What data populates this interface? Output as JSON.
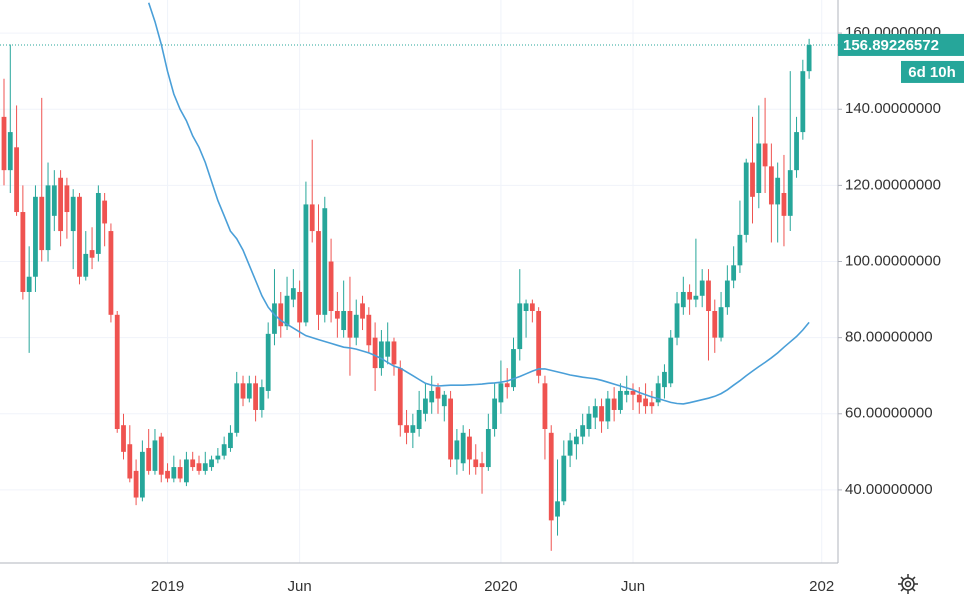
{
  "chart_data": {
    "type": "candlestick",
    "up_color": "#26a69a",
    "down_color": "#ef5350",
    "grid": true,
    "categories": [
      null,
      null,
      null,
      null,
      null,
      null,
      null,
      null,
      null,
      null,
      null,
      null,
      null,
      null,
      null,
      null,
      null,
      null,
      null,
      null,
      null,
      null,
      null,
      null,
      null,
      null,
      "2019",
      null,
      null,
      null,
      null,
      null,
      null,
      null,
      null,
      null,
      null,
      null,
      null,
      null,
      null,
      null,
      null,
      null,
      null,
      null,
      null,
      "Jun",
      null,
      null,
      null,
      null,
      null,
      null,
      null,
      null,
      null,
      null,
      null,
      null,
      null,
      null,
      null,
      null,
      null,
      null,
      null,
      null,
      null,
      null,
      null,
      null,
      null,
      null,
      null,
      null,
      null,
      null,
      null,
      "2020",
      null,
      null,
      null,
      null,
      null,
      null,
      null,
      null,
      null,
      null,
      null,
      null,
      null,
      null,
      null,
      null,
      null,
      null,
      null,
      null,
      "Jun",
      null,
      null,
      null,
      null,
      null,
      null,
      null,
      null,
      null,
      null,
      null,
      null,
      null,
      null,
      null,
      null,
      null,
      null,
      null,
      null,
      null,
      null,
      null,
      null,
      null,
      null,
      null,
      null,
      null,
      "202"
    ],
    "open": [
      138,
      124,
      130,
      113,
      92,
      96,
      117,
      103,
      112,
      122,
      120,
      108,
      117,
      96,
      103,
      102,
      116,
      108,
      86,
      57,
      52,
      45,
      38,
      51,
      45,
      54,
      45,
      43,
      46,
      42,
      48,
      47,
      45,
      46,
      48,
      49,
      51,
      55,
      68,
      64,
      68,
      61,
      66,
      81,
      89,
      83,
      90,
      92,
      84,
      115,
      108,
      86,
      100,
      87,
      82,
      87,
      80,
      89,
      86,
      80,
      72,
      75,
      79,
      72,
      57,
      55,
      56,
      60,
      63,
      67,
      62,
      64,
      48,
      47,
      54,
      48,
      47,
      46,
      56,
      63,
      68,
      67,
      77,
      87,
      89,
      87,
      68,
      55,
      33,
      37,
      49,
      52,
      54,
      56,
      59,
      62,
      58,
      64,
      61,
      65,
      66,
      65,
      64,
      63,
      63,
      67,
      68,
      80,
      88,
      92,
      90,
      91,
      95,
      87,
      80,
      88,
      95,
      99,
      107,
      126,
      118,
      131,
      125,
      115,
      118,
      112,
      124,
      134,
      150,
      null,
      null
    ],
    "high": [
      148,
      157,
      141,
      120,
      104,
      120,
      143,
      126,
      124,
      124,
      122,
      119,
      118,
      108,
      109,
      120,
      118,
      110,
      87,
      60,
      57,
      48,
      53,
      56,
      56,
      55,
      47,
      49,
      48,
      50,
      50,
      49,
      50,
      49,
      51,
      54,
      57,
      71,
      70,
      70,
      70,
      69,
      84,
      98,
      92,
      96,
      98,
      95,
      121,
      132,
      115,
      117,
      106,
      92,
      95,
      96,
      90,
      91,
      88,
      84,
      82,
      84,
      80,
      74,
      61,
      60,
      66,
      68,
      70,
      68,
      66,
      66,
      56,
      57,
      56,
      52,
      50,
      60,
      68,
      74,
      72,
      80,
      98,
      90,
      90,
      88,
      70,
      57,
      48,
      53,
      55,
      56,
      60,
      62,
      64,
      64,
      66,
      67,
      68,
      70,
      68,
      67,
      68,
      66,
      70,
      73,
      82,
      92,
      96,
      94,
      106,
      98,
      98,
      90,
      92,
      99,
      104,
      116,
      127,
      138,
      141,
      143,
      131,
      126,
      128,
      150,
      138,
      153,
      158.5,
      null,
      null
    ],
    "low": [
      120,
      118,
      112,
      90,
      76,
      92,
      100,
      100,
      108,
      104,
      106,
      98,
      94,
      95,
      98,
      100,
      104,
      84,
      55,
      48,
      42,
      36,
      37,
      44,
      44,
      42,
      42,
      42,
      42,
      41,
      45,
      44,
      44,
      45,
      47,
      48,
      50,
      54,
      62,
      63,
      58,
      59,
      64,
      78,
      80,
      82,
      88,
      80,
      83,
      105,
      82,
      84,
      84,
      80,
      80,
      70,
      78,
      82,
      76,
      66,
      70,
      73,
      70,
      54,
      52,
      51,
      54,
      58,
      60,
      60,
      58,
      46,
      44,
      45,
      44,
      44,
      39,
      45,
      54,
      60,
      64,
      66,
      74,
      80,
      84,
      68,
      48,
      24,
      28,
      36,
      46,
      48,
      52,
      54,
      56,
      55,
      56,
      58,
      60,
      63,
      61,
      60,
      60,
      60,
      62,
      64,
      67,
      78,
      86,
      86,
      88,
      88,
      74,
      76,
      79,
      86,
      93,
      97,
      105,
      110,
      114,
      118,
      105,
      105,
      104,
      108,
      122,
      132,
      148,
      null,
      null
    ],
    "close": [
      124,
      134,
      113,
      92,
      96,
      117,
      103,
      120,
      120,
      108,
      113,
      117,
      96,
      102,
      101,
      118,
      110,
      86,
      56,
      50,
      43,
      38,
      50,
      45,
      53,
      44,
      43,
      46,
      43,
      48,
      46,
      45,
      47,
      48,
      49,
      52,
      55,
      68,
      64,
      68,
      61,
      67,
      81,
      89,
      83,
      91,
      93,
      84,
      115,
      108,
      86,
      114,
      87,
      85,
      87,
      80,
      86,
      85,
      78,
      72,
      79,
      79,
      73,
      57,
      55,
      57,
      61,
      64,
      66,
      64,
      65,
      48,
      53,
      55,
      48,
      46,
      46,
      56,
      64,
      68,
      67,
      77,
      89,
      89,
      87,
      70,
      56,
      32,
      37,
      49,
      53,
      54,
      57,
      60,
      62,
      58,
      64,
      61,
      66,
      66,
      65,
      63,
      62,
      62,
      68,
      71,
      80,
      89,
      92,
      90,
      91,
      95,
      87,
      80,
      88,
      95,
      99,
      107,
      126,
      117,
      131,
      125,
      115,
      122,
      112,
      124,
      134,
      150,
      156.89226572,
      null,
      null
    ],
    "line": {
      "color": "#4a9fd8",
      "values": [
        null,
        null,
        null,
        null,
        null,
        null,
        null,
        null,
        null,
        null,
        null,
        null,
        null,
        null,
        null,
        null,
        null,
        null,
        null,
        null,
        null,
        null,
        null,
        168,
        163,
        157,
        150,
        144,
        140,
        137,
        133,
        130,
        126,
        121,
        116,
        112,
        108,
        106,
        103,
        99,
        95,
        91,
        88,
        86,
        84.5,
        83.5,
        82.5,
        81.5,
        80.5,
        80,
        79.5,
        79,
        78.5,
        78,
        77.5,
        77.3,
        77,
        76.5,
        76,
        75.3,
        74.5,
        73.5,
        72.5,
        72,
        71,
        70,
        69,
        68,
        67.5,
        67.3,
        67.4,
        67.5,
        67.5,
        67.5,
        67.6,
        67.7,
        67.8,
        68,
        68.1,
        68.3,
        68.6,
        69.2,
        69.8,
        70.5,
        71.2,
        71.8,
        71.8,
        71.4,
        71,
        70.6,
        70.2,
        69.9,
        69.6,
        69.4,
        69.2,
        68.8,
        68.3,
        67.8,
        67.3,
        66.8,
        66.3,
        65.6,
        65,
        64.4,
        64,
        63.5,
        63,
        62.7,
        62.6,
        62.9,
        63.3,
        63.7,
        64.1,
        64.6,
        65.3,
        66.3,
        67.5,
        68.7,
        70,
        71.2,
        72.4,
        73.5,
        74.7,
        76,
        77.5,
        78.9,
        80.3,
        82,
        84,
        null,
        null
      ]
    },
    "countdown": "6d 10h",
    "ylim": [
      20.8,
      168.7
    ],
    "yticks": [
      {
        "value": 40,
        "label": "40.00000000"
      },
      {
        "value": 60,
        "label": "60.00000000"
      },
      {
        "value": 80,
        "label": "80.00000000"
      },
      {
        "value": 100,
        "label": "100.00000000"
      },
      {
        "value": 120,
        "label": "120.00000000"
      },
      {
        "value": 140,
        "label": "140.00000000"
      },
      {
        "value": 160,
        "label": "160.00000000"
      }
    ]
  }
}
